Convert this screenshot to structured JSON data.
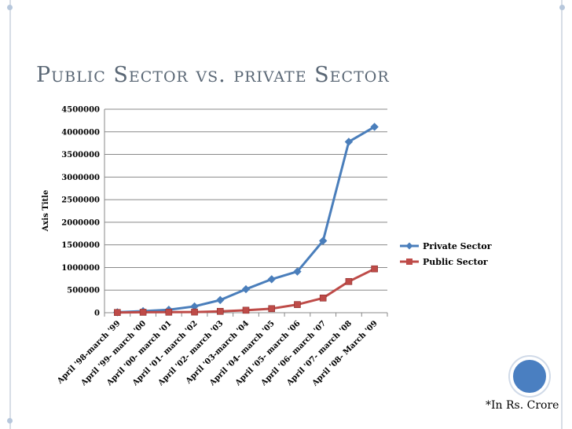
{
  "slide": {
    "title": "Public Sector vs. private Sector",
    "footnote": "*In Rs. Crore"
  },
  "colors": {
    "private": "#4a7ebb",
    "public": "#be4b48",
    "grid": "#888888",
    "accent_circle": "#4a7fc1"
  },
  "chart_data": {
    "type": "line",
    "title": "",
    "xlabel": "",
    "ylabel": "Axis Title",
    "ylim": [
      0,
      4500000
    ],
    "yticks": [
      0,
      500000,
      1000000,
      1500000,
      2000000,
      2500000,
      3000000,
      3500000,
      4000000,
      4500000
    ],
    "ytick_labels": [
      "0",
      "500000",
      "1000000",
      "1500000",
      "2000000",
      "2500000",
      "3000000",
      "3500000",
      "4000000",
      "4500000"
    ],
    "categories": [
      "April '98-march '99",
      "April '99- march '00",
      "April '00- march '01",
      "April '01- march '02",
      "April '02- march '03",
      "April '03-march '04",
      "April '04- march '05",
      "April '05- march '06",
      "April '06- march '07",
      "April '07- march '08",
      "April '08- March '09"
    ],
    "series": [
      {
        "name": "Private Sector",
        "marker": "diamond",
        "values": [
          10000,
          35000,
          65000,
          140000,
          280000,
          520000,
          740000,
          910000,
          1590000,
          3780000,
          4110000
        ]
      },
      {
        "name": "Public Sector",
        "marker": "square",
        "values": [
          5000,
          10000,
          12000,
          15000,
          30000,
          55000,
          90000,
          180000,
          325000,
          690000,
          970000
        ]
      }
    ],
    "legend": "right",
    "grid": true
  }
}
